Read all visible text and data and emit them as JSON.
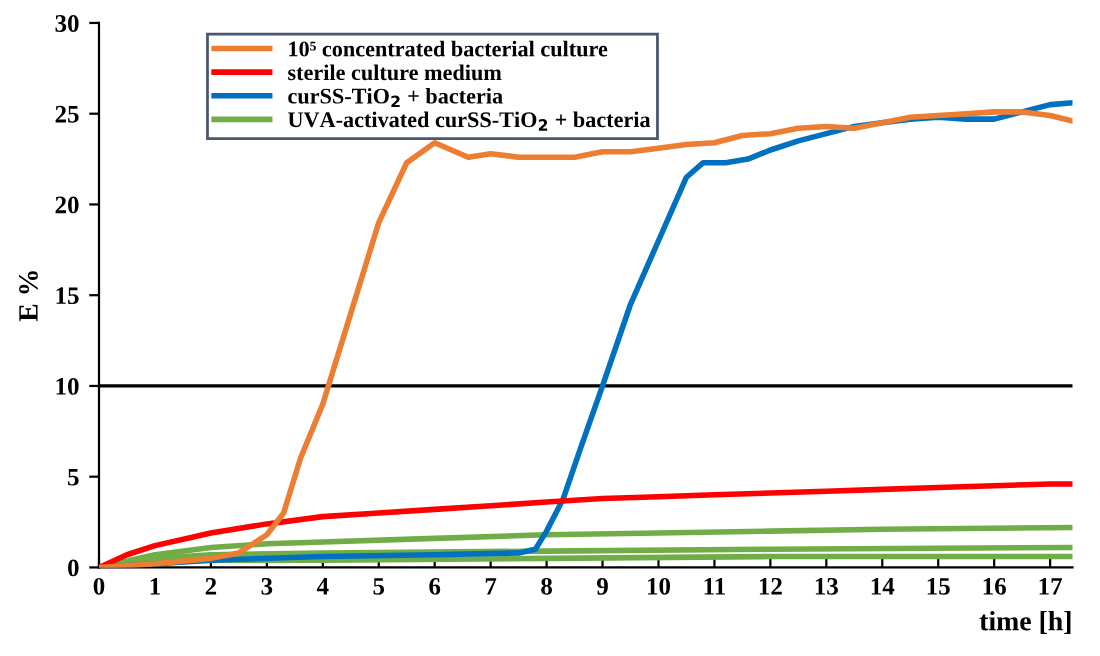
{
  "chart_data": {
    "type": "line",
    "xlabel": "time [h]",
    "ylabel": "E %",
    "xlim": [
      0,
      17.4
    ],
    "ylim": [
      0,
      30
    ],
    "xticks": [
      0,
      1,
      2,
      3,
      4,
      5,
      6,
      7,
      8,
      9,
      10,
      11,
      12,
      13,
      14,
      15,
      16,
      17
    ],
    "yticks": [
      0,
      5,
      10,
      15,
      20,
      25,
      30
    ],
    "grid": false,
    "legend": "top left",
    "marker": "none",
    "line_style": "solid",
    "ref_lines": [
      {
        "axis": "y",
        "value": 10,
        "color": "#000000"
      }
    ],
    "series": [
      {
        "name": "10⁵ concentrated bacterial culture",
        "color": "#ed7d31",
        "x": [
          0,
          1,
          2,
          2.5,
          3,
          3.3,
          3.6,
          4,
          4.5,
          5,
          5.5,
          6,
          6.3,
          6.6,
          7,
          7.5,
          8,
          8.5,
          9,
          9.5,
          10,
          10.5,
          11,
          11.5,
          12,
          12.5,
          13,
          13.5,
          14,
          14.5,
          15,
          15.5,
          16,
          16.5,
          17,
          17.4
        ],
        "values": [
          0,
          0.2,
          0.5,
          0.8,
          1.8,
          3,
          6,
          9,
          14,
          19,
          22.3,
          23.4,
          23,
          22.6,
          22.8,
          22.6,
          22.6,
          22.6,
          22.9,
          22.9,
          23.1,
          23.3,
          23.4,
          23.8,
          23.9,
          24.2,
          24.3,
          24.2,
          24.5,
          24.8,
          24.9,
          25,
          25.1,
          25.1,
          24.9,
          24.6
        ]
      },
      {
        "name": "sterile culture medium",
        "color": "#ff0000",
        "x": [
          0,
          0.5,
          1,
          2,
          3,
          4,
          5,
          6,
          7,
          8,
          9,
          10,
          11,
          12,
          13,
          14,
          15,
          16,
          17,
          17.4
        ],
        "values": [
          0,
          0.7,
          1.2,
          1.9,
          2.4,
          2.8,
          3.0,
          3.2,
          3.4,
          3.6,
          3.8,
          3.9,
          4.0,
          4.1,
          4.2,
          4.3,
          4.4,
          4.5,
          4.6,
          4.6
        ]
      },
      {
        "name": "curSS-TiO$_{2}$ + bacteria",
        "color": "#0070c0",
        "x": [
          0,
          2,
          4,
          6,
          7.5,
          7.8,
          8,
          8.3,
          8.6,
          9,
          9.5,
          10,
          10.5,
          10.8,
          11.2,
          11.6,
          12,
          12.5,
          13,
          13.5,
          14,
          14.5,
          15,
          15.5,
          16,
          16.5,
          17,
          17.4
        ],
        "values": [
          0,
          0.4,
          0.6,
          0.7,
          0.8,
          1,
          2,
          3.8,
          6.5,
          10,
          14.5,
          18,
          21.5,
          22.3,
          22.3,
          22.5,
          23,
          23.5,
          23.9,
          24.3,
          24.5,
          24.7,
          24.8,
          24.7,
          24.7,
          25.1,
          25.5,
          25.6
        ]
      },
      {
        "name": "UVA-activated curSS-TiO$_{2}$ + bacteria",
        "color": "#70ad47",
        "x": [
          0,
          1,
          2,
          3,
          4,
          6,
          8,
          10,
          12,
          14,
          17.4
        ],
        "values": [
          0,
          0.7,
          1.1,
          1.3,
          1.4,
          1.6,
          1.8,
          1.9,
          2.0,
          2.1,
          2.2
        ]
      },
      {
        "color": "#70ad47",
        "x": [
          0,
          1,
          2,
          4,
          8,
          12,
          17.4
        ],
        "values": [
          0,
          0.5,
          0.7,
          0.8,
          0.9,
          1.0,
          1.1
        ]
      },
      {
        "color": "#70ad47",
        "x": [
          0,
          1,
          2,
          4,
          8,
          12,
          17.4
        ],
        "values": [
          0,
          0.3,
          0.4,
          0.4,
          0.5,
          0.6,
          0.6
        ]
      }
    ]
  }
}
